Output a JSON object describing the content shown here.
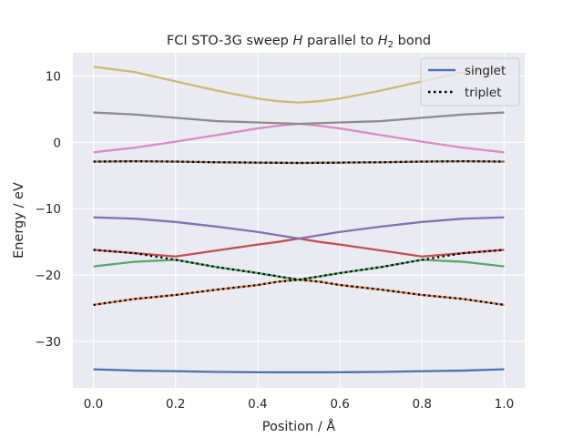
{
  "chart_data": {
    "type": "line",
    "title": "FCI STO-3G sweep H parallel to H2 bond",
    "title_parts": {
      "pre": "FCI STO-3G sweep ",
      "var": "H",
      "mid": " parallel to ",
      "mol": "H",
      "sub": "2",
      "post": " bond"
    },
    "xlabel": "Position / Å",
    "ylabel": "Energy / eV",
    "xlim": [
      -0.05,
      1.05
    ],
    "ylim": [
      -37,
      13.5
    ],
    "xticks": [
      0.0,
      0.2,
      0.4,
      0.6,
      0.8,
      1.0
    ],
    "xtick_labels": [
      "0.0",
      "0.2",
      "0.4",
      "0.6",
      "0.8",
      "1.0"
    ],
    "yticks": [
      -30,
      -20,
      -10,
      0,
      10
    ],
    "ytick_labels": [
      "−30",
      "−20",
      "−10",
      "0",
      "10"
    ],
    "grid": true,
    "background": "#eaeaf2",
    "legend": {
      "placement": "top-right",
      "entries": [
        {
          "label": "singlet",
          "style": "solid",
          "color": "#4c72b0"
        },
        {
          "label": "triplet",
          "style": "dotted",
          "color": "#000000"
        }
      ]
    },
    "x": [
      0.0,
      0.1,
      0.2,
      0.3,
      0.4,
      0.45,
      0.5,
      0.55,
      0.6,
      0.7,
      0.8,
      0.9,
      1.0
    ],
    "series": [
      {
        "color": "#4c72b0",
        "style": "solid",
        "values": [
          -34.2,
          -34.4,
          -34.5,
          -34.6,
          -34.65,
          -34.66,
          -34.66,
          -34.66,
          -34.65,
          -34.6,
          -34.5,
          -34.4,
          -34.2
        ]
      },
      {
        "color": "#dd8452",
        "style": "solid",
        "values": [
          -24.5,
          -23.6,
          -23.0,
          -22.2,
          -21.5,
          -21.0,
          -20.7,
          -21.0,
          -21.5,
          -22.2,
          -23.0,
          -23.6,
          -24.5
        ]
      },
      {
        "color": "#55a868",
        "style": "solid",
        "values": [
          -18.7,
          -18.0,
          -17.7,
          -18.8,
          -19.7,
          -20.2,
          -20.7,
          -20.2,
          -19.7,
          -18.8,
          -17.7,
          -18.0,
          -18.7
        ]
      },
      {
        "color": "#c44e52",
        "style": "solid",
        "values": [
          -16.2,
          -16.7,
          -17.2,
          -16.3,
          -15.4,
          -15.0,
          -14.5,
          -15.0,
          -15.4,
          -16.3,
          -17.2,
          -16.7,
          -16.2
        ]
      },
      {
        "color": "#8172b3",
        "style": "solid",
        "values": [
          -11.3,
          -11.5,
          -12.0,
          -12.7,
          -13.5,
          -14.0,
          -14.5,
          -14.0,
          -13.5,
          -12.7,
          -12.0,
          -11.5,
          -11.3
        ]
      },
      {
        "color": "#937860",
        "style": "solid",
        "values": [
          -2.9,
          -2.85,
          -2.9,
          -3.0,
          -3.05,
          -3.08,
          -3.1,
          -3.08,
          -3.05,
          -3.0,
          -2.9,
          -2.85,
          -2.9
        ]
      },
      {
        "color": "#da8bc3",
        "style": "solid",
        "values": [
          -1.5,
          -0.8,
          0.1,
          1.1,
          2.1,
          2.5,
          2.8,
          2.5,
          2.1,
          1.1,
          0.1,
          -0.8,
          -1.5
        ]
      },
      {
        "color": "#8c8c8c",
        "style": "solid",
        "values": [
          4.5,
          4.2,
          3.7,
          3.2,
          3.0,
          2.9,
          2.8,
          2.9,
          3.0,
          3.2,
          3.7,
          4.2,
          4.5
        ]
      },
      {
        "color": "#ccb974",
        "style": "solid",
        "values": [
          11.4,
          10.6,
          9.2,
          7.8,
          6.6,
          6.2,
          6.0,
          6.2,
          6.6,
          7.8,
          9.2,
          10.6,
          11.4
        ]
      },
      {
        "color": "#000000",
        "style": "dotted",
        "values": [
          -24.5,
          -23.6,
          -23.0,
          -22.2,
          -21.5,
          -21.0,
          -20.7,
          -21.0,
          -21.5,
          -22.2,
          -23.0,
          -23.6,
          -24.5
        ]
      },
      {
        "color": "#000000",
        "style": "dotted",
        "values": [
          -16.2,
          -16.7,
          -17.7,
          -18.8,
          -19.7,
          -20.2,
          -20.7,
          -20.2,
          -19.7,
          -18.8,
          -17.7,
          -16.7,
          -16.2
        ]
      },
      {
        "color": "#000000",
        "style": "dotted",
        "values": [
          -2.9,
          -2.85,
          -2.9,
          -3.0,
          -3.05,
          -3.08,
          -3.1,
          -3.08,
          -3.05,
          -3.0,
          -2.9,
          -2.85,
          -2.9
        ]
      }
    ]
  }
}
